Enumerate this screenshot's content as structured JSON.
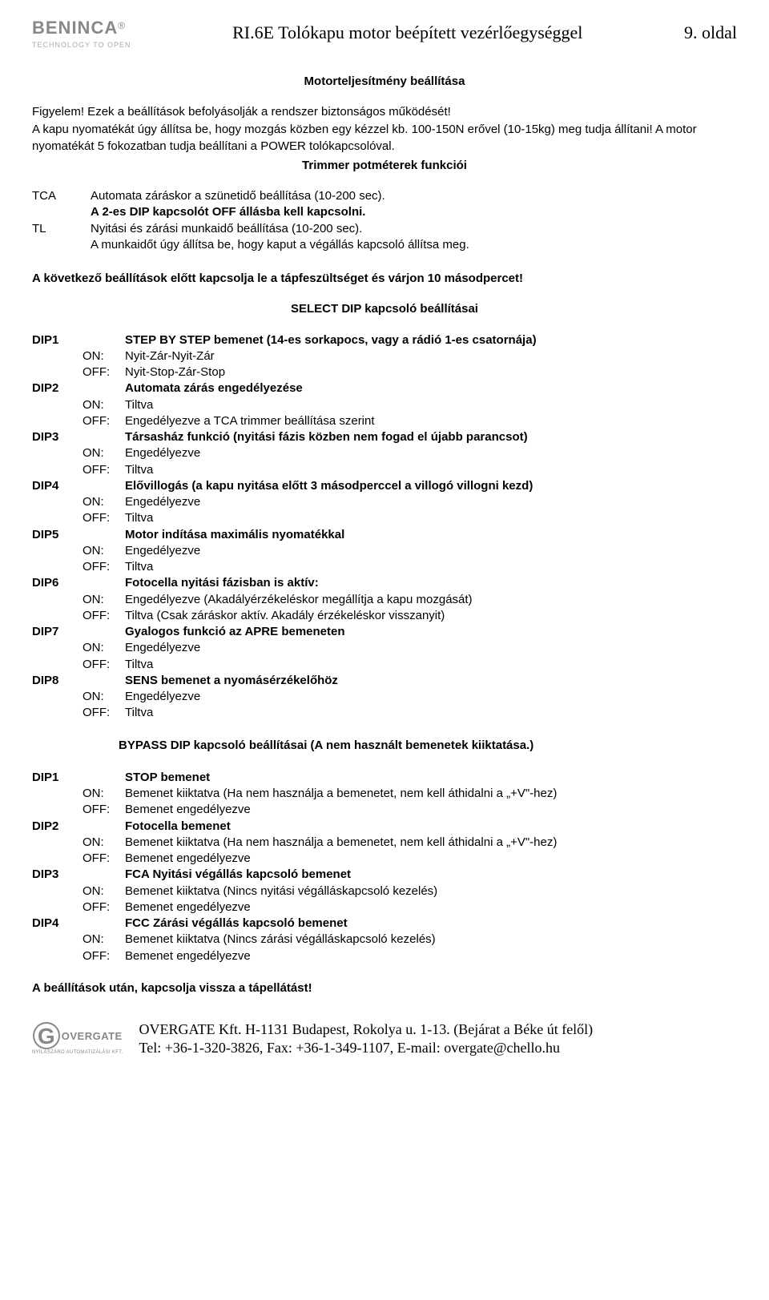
{
  "header": {
    "logo_brand": "BENINCA",
    "logo_reg": "®",
    "logo_tagline": "TECHNOLOGY TO OPEN",
    "doc_title": "RI.6E Tolókapu motor beépített vezérlőegységgel",
    "page_number": "9. oldal"
  },
  "section_title": "Motorteljesítmény beállítása",
  "intro": {
    "l1": "Figyelem! Ezek a beállítások befolyásolják a rendszer biztonságos működését!",
    "l2": "A kapu nyomatékát úgy állítsa be, hogy mozgás közben egy kézzel kb. 100-150N erővel (10-15kg) meg tudja állítani! A motor nyomatékát 5 fokozatban tudja beállítani a POWER tolókapcsolóval."
  },
  "trimmer_title": "Trimmer potméterek funkciói",
  "params": {
    "tca_code": "TCA",
    "tca_l1": "Automata záráskor a szünetidő beállítása (10-200 sec).",
    "tca_l2": "A 2-es DIP kapcsolót OFF állásba kell kapcsolni.",
    "tl_code": "TL",
    "tl_l1": "Nyitási és zárási munkaidő beállítása (10-200 sec).",
    "tl_l2": "A munkaidőt úgy állítsa be, hogy kaput a végállás kapcsoló állítsa meg."
  },
  "warning": "A következő beállítások előtt kapcsolja le a tápfeszültséget és várjon 10 másodpercet!",
  "select_title": "SELECT DIP kapcsoló beállításai",
  "select": {
    "dip1": {
      "id": "DIP1",
      "title": "STEP BY STEP bemenet (14-es sorkapocs, vagy a rádió 1-es csatornája)",
      "on_lbl": "ON:",
      "on": "Nyit-Zár-Nyit-Zár",
      "off_lbl": "OFF:",
      "off": "Nyit-Stop-Zár-Stop"
    },
    "dip2": {
      "id": "DIP2",
      "title": "Automata zárás engedélyezése",
      "on_lbl": "ON:",
      "on": "Tiltva",
      "off_lbl": "OFF:",
      "off": "Engedélyezve a TCA trimmer beállítása szerint"
    },
    "dip3": {
      "id": "DIP3",
      "title": "Társasház funkció (nyitási fázis közben nem fogad el újabb parancsot)",
      "on_lbl": "ON:",
      "on": "Engedélyezve",
      "off_lbl": "OFF:",
      "off": "Tiltva"
    },
    "dip4": {
      "id": "DIP4",
      "title": "Elővillogás (a kapu nyitása előtt 3 másodperccel a villogó villogni kezd)",
      "on_lbl": "ON:",
      "on": "Engedélyezve",
      "off_lbl": "OFF:",
      "off": "Tiltva"
    },
    "dip5": {
      "id": "DIP5",
      "title": "Motor indítása maximális nyomatékkal",
      "on_lbl": "ON:",
      "on": "Engedélyezve",
      "off_lbl": "OFF:",
      "off": "Tiltva"
    },
    "dip6": {
      "id": "DIP6",
      "title": "Fotocella nyitási fázisban is aktív:",
      "on_lbl": "ON:",
      "on": "Engedélyezve (Akadályérzékeléskor megállítja a kapu mozgását)",
      "off_lbl": "OFF:",
      "off": "Tiltva (Csak záráskor aktív. Akadály érzékeléskor visszanyit)"
    },
    "dip7": {
      "id": "DIP7",
      "title": "Gyalogos funkció az APRE bemeneten",
      "on_lbl": "ON:",
      "on": "Engedélyezve",
      "off_lbl": "OFF:",
      "off": "Tiltva"
    },
    "dip8": {
      "id": "DIP8",
      "title": "SENS bemenet a nyomásérzékelőhöz",
      "on_lbl": "ON:",
      "on": "Engedélyezve",
      "off_lbl": "OFF:",
      "off": "Tiltva"
    }
  },
  "bypass_title": "BYPASS DIP kapcsoló beállításai (A nem használt bemenetek kiiktatása.)",
  "bypass": {
    "dip1": {
      "id": "DIP1",
      "title": "STOP bemenet",
      "on_lbl": "ON:",
      "on": "Bemenet kiiktatva (Ha nem használja a bemenetet, nem kell áthidalni a „+V\"-hez)",
      "off_lbl": "OFF:",
      "off": "Bemenet engedélyezve"
    },
    "dip2": {
      "id": "DIP2",
      "title": "Fotocella bemenet",
      "on_lbl": "ON:",
      "on": "Bemenet kiiktatva (Ha nem használja a bemenetet, nem kell áthidalni a „+V\"-hez)",
      "off_lbl": "OFF:",
      "off": "Bemenet engedélyezve"
    },
    "dip3": {
      "id": "DIP3",
      "title": "FCA Nyitási végállás kapcsoló bemenet",
      "on_lbl": "ON:",
      "on": "Bemenet kiiktatva (Nincs nyitási végálláskapcsoló kezelés)",
      "off_lbl": "OFF:",
      "off": "Bemenet engedélyezve"
    },
    "dip4": {
      "id": "DIP4",
      "title": "FCC Zárási végállás kapcsoló bemenet",
      "on_lbl": "ON:",
      "on": "Bemenet kiiktatva (Nincs zárási végálláskapcsoló kezelés)",
      "off_lbl": "OFF:",
      "off": "Bemenet engedélyezve"
    }
  },
  "final_warning": "A beállítások után, kapcsolja vissza a tápellátást!",
  "footer": {
    "logo_g": "G",
    "logo_text": "OVERGATE",
    "logo_sub": "NYÍLÁSZÁRÓ AUTOMATIZÁLÁSI KFT.",
    "line1": "OVERGATE Kft. H-1131 Budapest, Rokolya u. 1-13. (Bejárat a Béke út felől)",
    "line2": "Tel: +36-1-320-3826, Fax: +36-1-349-1107, E-mail: overgate@chello.hu"
  }
}
